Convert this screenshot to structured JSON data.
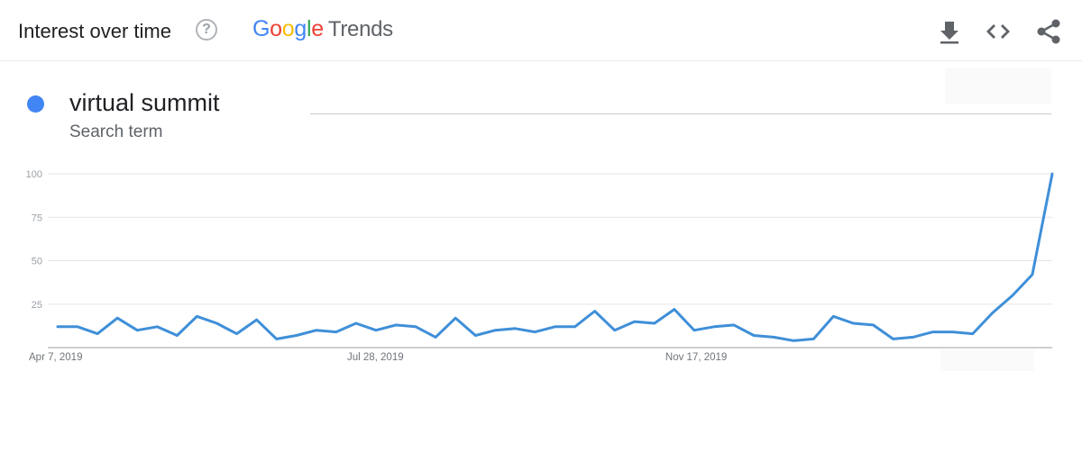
{
  "header": {
    "title": "Interest over time",
    "help_glyph": "?",
    "logo": {
      "google_letters": [
        {
          "ch": "G",
          "color": "#4285f4"
        },
        {
          "ch": "o",
          "color": "#ea4335"
        },
        {
          "ch": "o",
          "color": "#fbbc05"
        },
        {
          "ch": "g",
          "color": "#4285f4"
        },
        {
          "ch": "l",
          "color": "#34a853"
        },
        {
          "ch": "e",
          "color": "#ea4335"
        }
      ],
      "trends": "Trends"
    },
    "icons": [
      "download-icon",
      "embed-code-icon",
      "share-icon"
    ],
    "icon_color": "#5f6368"
  },
  "legend": {
    "term": "virtual summit",
    "subtitle": "Search term",
    "color": "#4285f4"
  },
  "chart_data": {
    "type": "line",
    "title": "",
    "xlabel": "",
    "ylabel": "",
    "ylim": [
      0,
      100
    ],
    "yticks": [
      25,
      50,
      75,
      100
    ],
    "ytick_labels": [
      "25",
      "50",
      "75",
      "100"
    ],
    "xtick_labels": [
      "Apr 7, 2019",
      "Jul 28, 2019",
      "Nov 17, 2019"
    ],
    "xtick_indices": [
      0,
      16,
      32
    ],
    "grid": true,
    "line_color": "#3f8fd8",
    "series": [
      {
        "values": [
          12,
          12,
          8,
          17,
          10,
          12,
          7,
          18,
          14,
          8,
          16,
          5,
          7,
          10,
          9,
          14,
          10,
          13,
          12,
          6,
          17,
          7,
          10,
          11,
          9,
          12,
          12,
          21,
          10,
          15,
          14,
          22,
          10,
          12,
          13,
          7,
          6,
          4,
          5,
          18,
          14,
          13,
          5,
          6,
          9,
          9,
          8,
          20,
          30,
          42,
          100
        ]
      }
    ]
  }
}
